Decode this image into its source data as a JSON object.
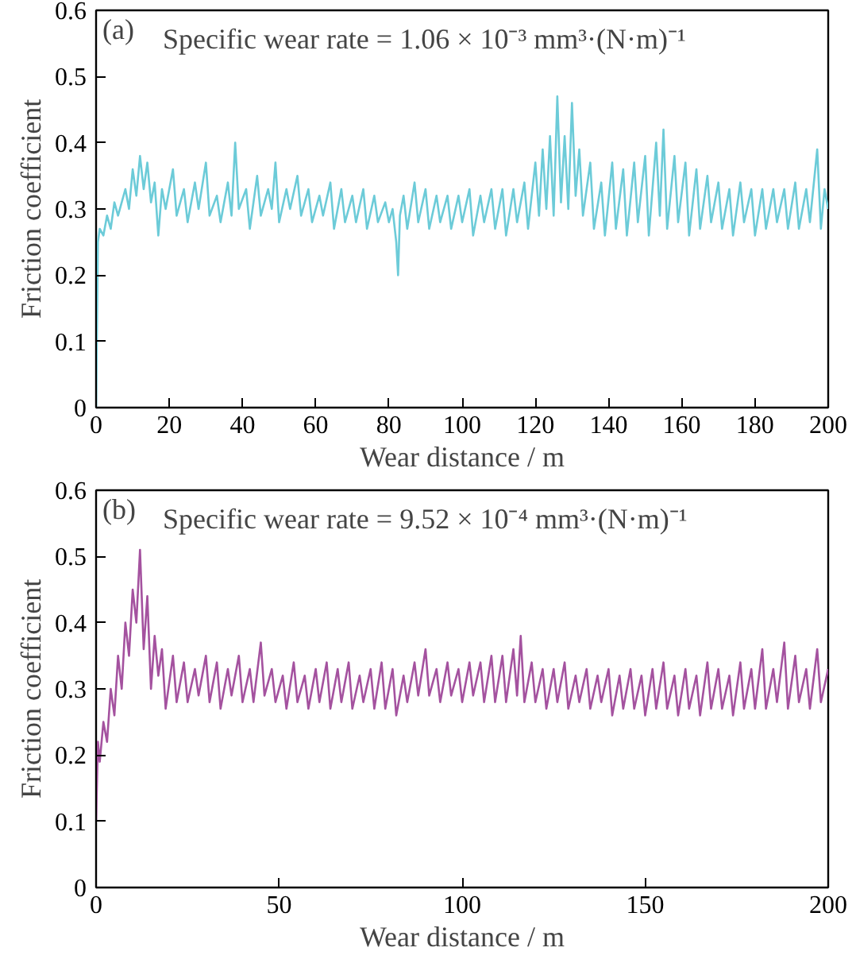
{
  "chart_data": [
    {
      "type": "line",
      "xlabel": "Wear distance / m",
      "ylabel": "Friction coefficient",
      "annotations": [
        "(a)",
        "Specific wear rate = 1.06 × 10⁻³ mm³·(N·m)⁻¹"
      ],
      "x": [
        0,
        0.5,
        1,
        2,
        3,
        4,
        5,
        6,
        8,
        9,
        10,
        11,
        12,
        13,
        14,
        15,
        16,
        17,
        18,
        19,
        21,
        22,
        24,
        25,
        27,
        28,
        30,
        31,
        33,
        34,
        36,
        37,
        38,
        39,
        41,
        42,
        44,
        45,
        47,
        48,
        49,
        50,
        52,
        53,
        55,
        56,
        58,
        59,
        61,
        62,
        64,
        65,
        67,
        68,
        70,
        71,
        73,
        74,
        76,
        77,
        79,
        80,
        81,
        82,
        82.5,
        83,
        84,
        85,
        87,
        88,
        90,
        91,
        93,
        94,
        96,
        97,
        99,
        100,
        102,
        103,
        105,
        106,
        108,
        109,
        111,
        112,
        114,
        115,
        117,
        118,
        120,
        121,
        122,
        123,
        124,
        125,
        126,
        127,
        128,
        129,
        130,
        131,
        132,
        133,
        135,
        136,
        138,
        139,
        141,
        142,
        144,
        145,
        147,
        148,
        150,
        151,
        153,
        154,
        155,
        156,
        158,
        159,
        161,
        162,
        164,
        165,
        167,
        168,
        170,
        171,
        173,
        174,
        176,
        177,
        179,
        180,
        182,
        183,
        185,
        186,
        188,
        189,
        191,
        192,
        194,
        195,
        197,
        198,
        199,
        200
      ],
      "series": [
        {
          "color": "#6ccbd8",
          "values": [
            0.0,
            0.25,
            0.27,
            0.26,
            0.29,
            0.27,
            0.31,
            0.29,
            0.33,
            0.3,
            0.36,
            0.32,
            0.38,
            0.33,
            0.37,
            0.31,
            0.34,
            0.26,
            0.33,
            0.3,
            0.36,
            0.29,
            0.33,
            0.28,
            0.34,
            0.3,
            0.37,
            0.29,
            0.32,
            0.28,
            0.34,
            0.29,
            0.4,
            0.3,
            0.33,
            0.27,
            0.35,
            0.29,
            0.33,
            0.3,
            0.37,
            0.28,
            0.33,
            0.3,
            0.35,
            0.29,
            0.33,
            0.28,
            0.32,
            0.29,
            0.34,
            0.27,
            0.33,
            0.28,
            0.32,
            0.28,
            0.33,
            0.27,
            0.32,
            0.28,
            0.31,
            0.28,
            0.3,
            0.25,
            0.2,
            0.29,
            0.32,
            0.27,
            0.34,
            0.28,
            0.33,
            0.27,
            0.32,
            0.28,
            0.32,
            0.27,
            0.32,
            0.28,
            0.33,
            0.26,
            0.32,
            0.28,
            0.33,
            0.27,
            0.33,
            0.26,
            0.33,
            0.28,
            0.34,
            0.27,
            0.37,
            0.29,
            0.39,
            0.3,
            0.41,
            0.29,
            0.47,
            0.31,
            0.41,
            0.3,
            0.46,
            0.32,
            0.39,
            0.29,
            0.37,
            0.27,
            0.34,
            0.26,
            0.37,
            0.27,
            0.36,
            0.26,
            0.37,
            0.28,
            0.38,
            0.26,
            0.4,
            0.29,
            0.42,
            0.27,
            0.38,
            0.28,
            0.37,
            0.26,
            0.36,
            0.27,
            0.35,
            0.28,
            0.34,
            0.27,
            0.33,
            0.26,
            0.34,
            0.28,
            0.33,
            0.26,
            0.33,
            0.27,
            0.33,
            0.28,
            0.33,
            0.27,
            0.34,
            0.27,
            0.33,
            0.28,
            0.39,
            0.27,
            0.33,
            0.3
          ]
        }
      ],
      "xlim": [
        0,
        200
      ],
      "ylim": [
        0,
        0.6
      ],
      "xticks": [
        0,
        20,
        40,
        60,
        80,
        100,
        120,
        140,
        160,
        180,
        200
      ],
      "yticks": [
        0,
        0.1,
        0.2,
        0.3,
        0.4,
        0.5,
        0.6
      ]
    },
    {
      "type": "line",
      "xlabel": "Wear distance / m",
      "ylabel": "Friction coefficient",
      "annotations": [
        "(b)",
        "Specific wear rate = 9.52 × 10⁻⁴ mm³·(N·m)⁻¹"
      ],
      "x": [
        0,
        0.5,
        1,
        2,
        3,
        4,
        5,
        6,
        7,
        8,
        9,
        10,
        11,
        12,
        13,
        14,
        15,
        16,
        17,
        18,
        19,
        21,
        22,
        24,
        25,
        27,
        28,
        30,
        31,
        33,
        34,
        36,
        37,
        39,
        40,
        42,
        43,
        45,
        46,
        48,
        49,
        51,
        52,
        54,
        55,
        57,
        58,
        60,
        61,
        63,
        64,
        66,
        67,
        69,
        70,
        72,
        73,
        75,
        76,
        78,
        79,
        81,
        82,
        84,
        85,
        87,
        88,
        90,
        91,
        93,
        94,
        96,
        97,
        99,
        100,
        102,
        103,
        105,
        106,
        108,
        109,
        111,
        112,
        114,
        115,
        116,
        117,
        119,
        120,
        122,
        123,
        125,
        126,
        128,
        129,
        131,
        132,
        134,
        135,
        137,
        138,
        140,
        141,
        143,
        144,
        146,
        147,
        149,
        150,
        152,
        153,
        155,
        156,
        158,
        159,
        161,
        162,
        164,
        165,
        167,
        168,
        170,
        171,
        173,
        174,
        176,
        177,
        179,
        180,
        182,
        183,
        185,
        186,
        188,
        189,
        191,
        192,
        194,
        195,
        197,
        198,
        200
      ],
      "series": [
        {
          "color": "#a4529f",
          "values": [
            0.1,
            0.22,
            0.19,
            0.25,
            0.22,
            0.3,
            0.26,
            0.35,
            0.3,
            0.4,
            0.35,
            0.45,
            0.4,
            0.51,
            0.36,
            0.44,
            0.3,
            0.38,
            0.32,
            0.36,
            0.27,
            0.35,
            0.28,
            0.34,
            0.28,
            0.33,
            0.29,
            0.35,
            0.28,
            0.34,
            0.27,
            0.33,
            0.29,
            0.35,
            0.28,
            0.33,
            0.28,
            0.37,
            0.29,
            0.33,
            0.28,
            0.32,
            0.27,
            0.34,
            0.28,
            0.32,
            0.27,
            0.33,
            0.28,
            0.34,
            0.27,
            0.33,
            0.28,
            0.34,
            0.27,
            0.32,
            0.28,
            0.33,
            0.27,
            0.34,
            0.27,
            0.33,
            0.26,
            0.32,
            0.28,
            0.34,
            0.29,
            0.36,
            0.29,
            0.33,
            0.28,
            0.34,
            0.29,
            0.33,
            0.28,
            0.34,
            0.29,
            0.34,
            0.28,
            0.35,
            0.28,
            0.35,
            0.28,
            0.36,
            0.29,
            0.38,
            0.28,
            0.34,
            0.28,
            0.33,
            0.27,
            0.33,
            0.28,
            0.34,
            0.27,
            0.32,
            0.28,
            0.33,
            0.27,
            0.32,
            0.28,
            0.33,
            0.26,
            0.32,
            0.27,
            0.33,
            0.27,
            0.32,
            0.26,
            0.33,
            0.27,
            0.34,
            0.27,
            0.32,
            0.26,
            0.33,
            0.27,
            0.32,
            0.26,
            0.34,
            0.27,
            0.33,
            0.27,
            0.32,
            0.26,
            0.34,
            0.27,
            0.33,
            0.27,
            0.36,
            0.27,
            0.33,
            0.28,
            0.37,
            0.27,
            0.35,
            0.28,
            0.33,
            0.27,
            0.36,
            0.28,
            0.33
          ]
        }
      ],
      "xlim": [
        0,
        200
      ],
      "ylim": [
        0,
        0.6
      ],
      "xticks": [
        0,
        50,
        100,
        150,
        200
      ],
      "yticks": [
        0,
        0.1,
        0.2,
        0.3,
        0.4,
        0.5,
        0.6
      ]
    }
  ]
}
